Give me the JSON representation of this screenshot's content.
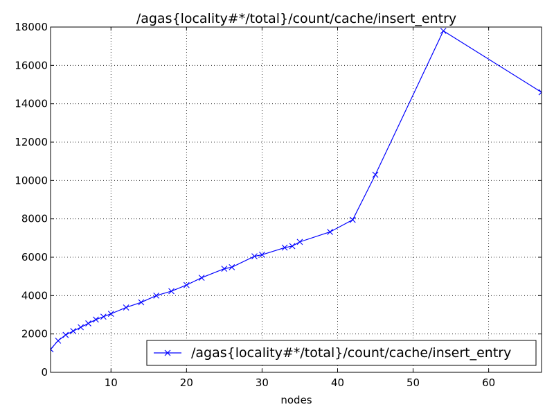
{
  "chart_data": {
    "type": "line",
    "title": "/agas{locality#*/total}/count/cache/insert_entry",
    "xlabel": "nodes",
    "ylabel": "",
    "xlim": [
      2,
      67
    ],
    "ylim": [
      0,
      18000
    ],
    "xticks": [
      10,
      20,
      30,
      40,
      50,
      60
    ],
    "yticks": [
      0,
      2000,
      4000,
      6000,
      8000,
      10000,
      12000,
      14000,
      16000,
      18000
    ],
    "grid": true,
    "legend_position": "lower-right",
    "series": [
      {
        "name": "/agas{locality#*/total}/count/cache/insert_entry",
        "color": "#0000ff",
        "marker": "x",
        "x": [
          2,
          3,
          4,
          5,
          6,
          7,
          8,
          9,
          10,
          12,
          14,
          16,
          18,
          20,
          22,
          25,
          26,
          29,
          30,
          33,
          34,
          35,
          39,
          42,
          45,
          54,
          67
        ],
        "y": [
          1200,
          1650,
          1950,
          2150,
          2350,
          2550,
          2750,
          2900,
          3050,
          3380,
          3650,
          4000,
          4230,
          4550,
          4930,
          5400,
          5480,
          6050,
          6130,
          6500,
          6580,
          6800,
          7320,
          7950,
          10300,
          17800,
          14600
        ]
      }
    ]
  }
}
